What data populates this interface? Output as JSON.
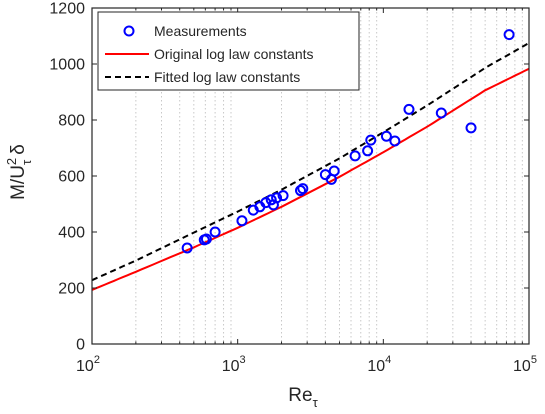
{
  "chart_data": {
    "type": "scatter",
    "xlabel": "Re",
    "xlabel_sub": "τ",
    "ylabel_parts": [
      "M/U",
      "2",
      "τ",
      "δ"
    ],
    "xscale": "log",
    "xlim": [
      100,
      100000
    ],
    "ylim": [
      0,
      1200
    ],
    "xticks": [
      100,
      1000,
      10000,
      100000
    ],
    "xtick_labels": [
      {
        "base": "10",
        "exp": "2"
      },
      {
        "base": "10",
        "exp": "3"
      },
      {
        "base": "10",
        "exp": "4"
      },
      {
        "base": "10",
        "exp": "5"
      }
    ],
    "yticks": [
      0,
      200,
      400,
      600,
      800,
      1000,
      1200
    ],
    "ytick_labels": [
      "0",
      "200",
      "400",
      "600",
      "800",
      "1000",
      "1200"
    ],
    "grid": "x-minor-dotted",
    "legend_position": "top-left",
    "colors": {
      "measurements": "#0000ff",
      "original": "#ff0000",
      "fitted": "#000000"
    },
    "series": [
      {
        "name": "Measurements",
        "style": "markers",
        "x": [
          450,
          590,
          610,
          700,
          1070,
          1280,
          1420,
          1560,
          1700,
          1760,
          1850,
          2050,
          2700,
          2800,
          4000,
          4400,
          4600,
          6400,
          7800,
          8200,
          10500,
          12000,
          15000,
          25000,
          40000,
          73000
        ],
        "y": [
          343,
          372,
          375,
          400,
          440,
          478,
          490,
          505,
          515,
          497,
          522,
          530,
          548,
          555,
          605,
          588,
          618,
          672,
          690,
          728,
          742,
          725,
          838,
          825,
          772,
          1105
        ]
      },
      {
        "name": "Original log law constants",
        "style": "solid",
        "x": [
          100,
          200,
          500,
          1000,
          2000,
          5000,
          10000,
          20000,
          50000,
          100000
        ],
        "y": [
          193,
          258,
          345,
          415,
          490,
          597,
          685,
          776,
          906,
          983
        ]
      },
      {
        "name": "Fitted log law constants",
        "style": "dashed",
        "x": [
          100,
          200,
          500,
          1000,
          2000,
          5000,
          10000,
          20000,
          50000,
          100000
        ],
        "y": [
          228,
          298,
          398,
          473,
          551,
          663,
          756,
          852,
          986,
          1075
        ]
      }
    ]
  }
}
